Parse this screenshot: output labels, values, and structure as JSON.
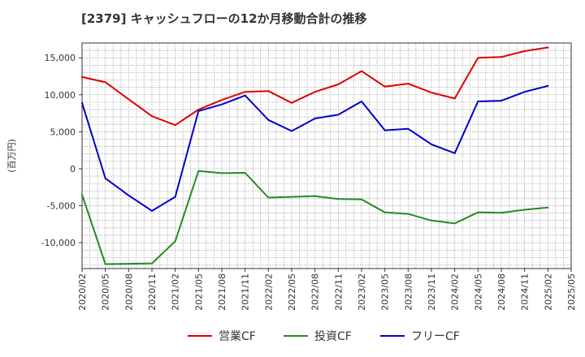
{
  "chart_data": {
    "type": "line",
    "title": "[2379]  キャッシュフローの12か月移動合計の推移",
    "ylabel": "(百万円)",
    "xlabel": "",
    "ylim": [
      -13500,
      17000
    ],
    "yticks": [
      15000,
      10000,
      5000,
      0,
      -5000,
      -10000
    ],
    "ytick_labels": [
      "15,000",
      "10,000",
      "5,000",
      "0",
      "-5,000",
      "-10,000"
    ],
    "x_tick_labels": [
      "2020/02",
      "2020/05",
      "2020/08",
      "2020/11",
      "2021/02",
      "2021/05",
      "2021/08",
      "2021/11",
      "2022/02",
      "2022/05",
      "2022/08",
      "2022/11",
      "2023/02",
      "2023/05",
      "2023/08",
      "2023/11",
      "2024/02",
      "2024/05",
      "2024/08",
      "2024/11",
      "2025/02",
      "2025/05"
    ],
    "categories": [
      "2020/02",
      "2020/05",
      "2020/08",
      "2020/11",
      "2021/02",
      "2021/05",
      "2021/08",
      "2021/11",
      "2022/02",
      "2022/05",
      "2022/08",
      "2022/11",
      "2023/02",
      "2023/05",
      "2023/08",
      "2023/11",
      "2024/02",
      "2024/05",
      "2024/08",
      "2024/11",
      "2025/02"
    ],
    "grid": true,
    "legend_position": "bottom",
    "series": [
      {
        "name": "営業CF",
        "color": "#e00000",
        "values": [
          12400,
          11700,
          9400,
          7100,
          5900,
          8000,
          9300,
          10400,
          10500,
          8900,
          10400,
          11400,
          13200,
          11100,
          11500,
          10300,
          9500,
          15000,
          15100,
          15900,
          16400
        ]
      },
      {
        "name": "投資CF",
        "color": "#228b22",
        "values": [
          -3500,
          -12900,
          -12850,
          -12800,
          -9800,
          -300,
          -600,
          -550,
          -3900,
          -3800,
          -3700,
          -4100,
          -4150,
          -5900,
          -6100,
          -7000,
          -7400,
          -5900,
          -5950,
          -5550,
          -5250
        ]
      },
      {
        "name": "フリーCF",
        "color": "#0000cc",
        "values": [
          8900,
          -1300,
          -3600,
          -5700,
          -3800,
          7800,
          8700,
          9900,
          6600,
          5100,
          6800,
          7300,
          9100,
          5200,
          5400,
          3300,
          2100,
          9100,
          9200,
          10400,
          11200
        ]
      }
    ]
  }
}
